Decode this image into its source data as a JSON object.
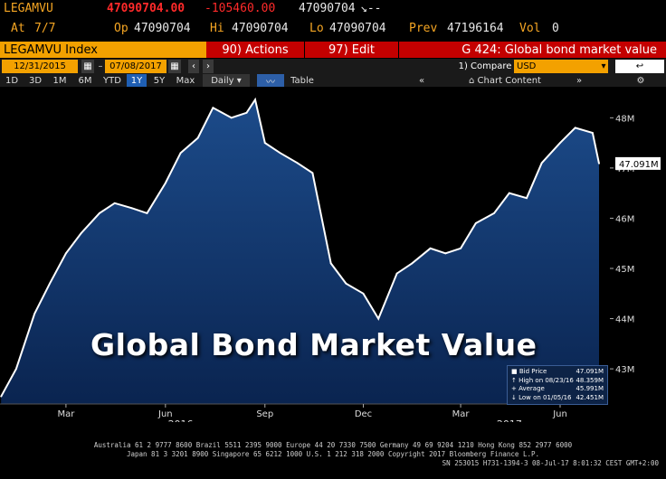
{
  "quote": {
    "ticker": "LEGAMVU",
    "last": "47090704.00",
    "change": "-105460.00",
    "last_small": "47090704",
    "arrow_text": "↘--",
    "at_label": "At",
    "at_value": "7/7",
    "op_label": "Op",
    "op_value": "47090704",
    "hi_label": "Hi",
    "hi_value": "47090704",
    "lo_label": "Lo",
    "lo_value": "47090704",
    "prev_label": "Prev",
    "prev_value": "47196164",
    "vol_label": "Vol",
    "vol_value": "0"
  },
  "bar": {
    "index_label": "LEGAMVU Index",
    "actions_label": "90) Actions",
    "edit_label": "97) Edit",
    "page_label": "G 424: Global bond market value"
  },
  "dates": {
    "start": "12/31/2015",
    "end": "07/08/2017",
    "compare_label": "1) Compare",
    "currency": "USD"
  },
  "periods": [
    "1D",
    "3D",
    "1M",
    "6M",
    "YTD",
    "1Y",
    "5Y",
    "Max"
  ],
  "active_period": "1Y",
  "frequency": "Daily",
  "table_label": "Table",
  "chart_content_label": "Chart Content",
  "overlay_title": "Global Bond Market Value",
  "current_value_label": "47.091M",
  "colors": {
    "accent_amber": "#f3a100",
    "accent_red": "#c40000",
    "fill_top": "#1c4b8a",
    "fill_bottom": "#0a2450",
    "line": "#ffffff"
  },
  "legend": {
    "items": [
      {
        "label": "Bid Price",
        "value": "47.091M"
      },
      {
        "label": "High on 08/23/16",
        "value": "48.359M"
      },
      {
        "label": "Average",
        "value": "45.991M"
      },
      {
        "label": "Low on 01/05/16",
        "value": "42.451M"
      }
    ]
  },
  "footer": {
    "line1": "Australia 61 2 9777 8600 Brazil 5511 2395 9000 Europe 44 20 7330 7500 Germany 49 69 9204 1210 Hong Kong 852 2977 6000",
    "line2": "Japan 81 3 3201 8900        Singapore 65 6212 1000        U.S. 1 212 318 2000                Copyright 2017 Bloomberg Finance L.P.",
    "line3": "SN 253015 H731-1394-3 08-Jul-17   8:01:32 CEST GMT+2:00"
  },
  "chart_data": {
    "type": "area",
    "title": "Global Bond Market Value",
    "xlabel": "",
    "ylabel": "",
    "x_tick_labels": [
      "Mar",
      "Jun",
      "Sep",
      "Dec",
      "Mar",
      "Jun"
    ],
    "x_year_labels": [
      "2016",
      "2017"
    ],
    "y_tick_labels": [
      "43M",
      "44M",
      "45M",
      "46M",
      "47M",
      "48M"
    ],
    "ylim": [
      42.3,
      48.6
    ],
    "x": [
      "2016-01-01",
      "2016-01-15",
      "2016-02-01",
      "2016-02-15",
      "2016-03-01",
      "2016-03-15",
      "2016-04-01",
      "2016-04-15",
      "2016-05-01",
      "2016-05-15",
      "2016-06-01",
      "2016-06-15",
      "2016-07-01",
      "2016-07-15",
      "2016-08-01",
      "2016-08-15",
      "2016-08-23",
      "2016-09-01",
      "2016-09-15",
      "2016-10-01",
      "2016-10-15",
      "2016-11-01",
      "2016-11-15",
      "2016-12-01",
      "2016-12-15",
      "2017-01-01",
      "2017-01-15",
      "2017-02-01",
      "2017-02-15",
      "2017-03-01",
      "2017-03-15",
      "2017-04-01",
      "2017-04-15",
      "2017-05-01",
      "2017-05-15",
      "2017-06-01",
      "2017-06-15",
      "2017-07-01",
      "2017-07-07"
    ],
    "values": [
      42.45,
      43.0,
      44.1,
      44.7,
      45.3,
      45.7,
      46.1,
      46.3,
      46.2,
      46.1,
      46.7,
      47.3,
      47.6,
      48.2,
      48.0,
      48.1,
      48.36,
      47.5,
      47.3,
      47.1,
      46.9,
      45.1,
      44.7,
      44.5,
      44.0,
      44.9,
      45.1,
      45.4,
      45.3,
      45.4,
      45.9,
      46.1,
      46.5,
      46.4,
      47.1,
      47.5,
      47.8,
      47.7,
      47.09
    ],
    "series": [
      {
        "name": "Bid Price",
        "values_ref": "values"
      }
    ],
    "grid": false,
    "legend_placement": "bottom-right"
  }
}
